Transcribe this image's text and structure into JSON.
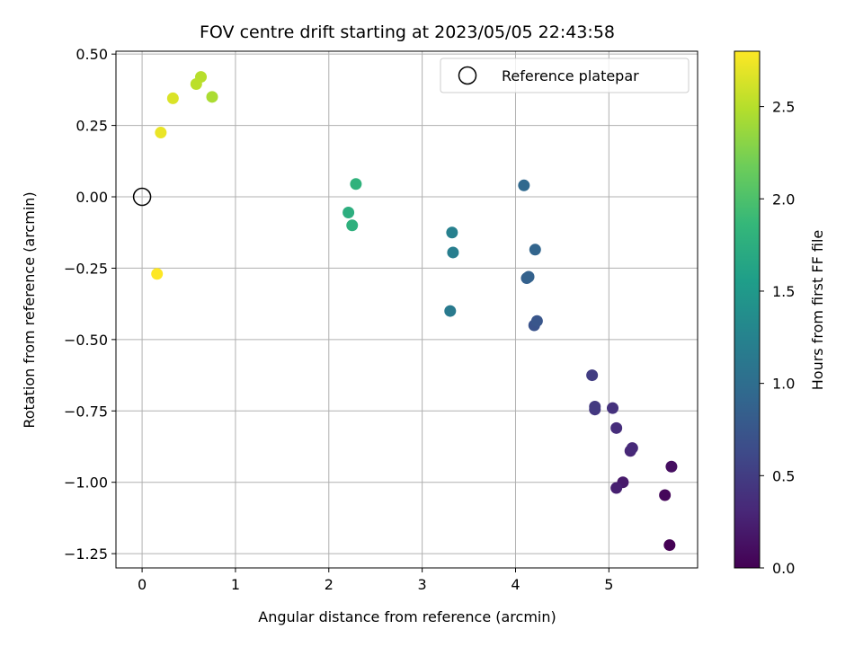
{
  "chart_data": {
    "type": "scatter",
    "title": "FOV centre drift starting at 2023/05/05 22:43:58",
    "xlabel": "Angular distance from reference (arcmin)",
    "ylabel": "Rotation from reference (arcmin)",
    "xlim": [
      -0.28,
      5.95
    ],
    "ylim": [
      -1.3,
      0.51
    ],
    "xticks": [
      0,
      1,
      2,
      3,
      4,
      5
    ],
    "xtick_labels": [
      "0",
      "1",
      "2",
      "3",
      "4",
      "5"
    ],
    "yticks": [
      0.5,
      0.25,
      0.0,
      -0.25,
      -0.5,
      -0.75,
      -1.0,
      -1.25
    ],
    "ytick_labels": [
      "0.50",
      "0.25",
      "0.00",
      "−0.25",
      "−0.50",
      "−0.75",
      "−1.00",
      "−1.25"
    ],
    "grid": true,
    "legend": {
      "position": "top-right",
      "entries": [
        "Reference platepar"
      ]
    },
    "reference_point": {
      "x": 0.0,
      "y": 0.0
    },
    "colorbar": {
      "label": "Hours from first FF file",
      "range": [
        0.0,
        2.8
      ],
      "ticks": [
        0.0,
        0.5,
        1.0,
        1.5,
        2.0,
        2.5
      ],
      "tick_labels": [
        "0.0",
        "0.5",
        "1.0",
        "1.5",
        "2.0",
        "2.5"
      ],
      "colormap": "viridis"
    },
    "points": [
      {
        "x": 5.65,
        "y": -1.22,
        "hours": 0.0
      },
      {
        "x": 5.6,
        "y": -1.045,
        "hours": 0.05
      },
      {
        "x": 5.67,
        "y": -0.945,
        "hours": 0.1
      },
      {
        "x": 5.15,
        "y": -1.0,
        "hours": 0.2
      },
      {
        "x": 5.08,
        "y": -1.02,
        "hours": 0.25
      },
      {
        "x": 5.23,
        "y": -0.89,
        "hours": 0.3
      },
      {
        "x": 5.25,
        "y": -0.88,
        "hours": 0.33
      },
      {
        "x": 5.08,
        "y": -0.81,
        "hours": 0.36
      },
      {
        "x": 5.04,
        "y": -0.74,
        "hours": 0.4
      },
      {
        "x": 4.85,
        "y": -0.745,
        "hours": 0.45
      },
      {
        "x": 4.85,
        "y": -0.735,
        "hours": 0.48
      },
      {
        "x": 4.82,
        "y": -0.625,
        "hours": 0.5
      },
      {
        "x": 4.2,
        "y": -0.45,
        "hours": 0.72
      },
      {
        "x": 4.23,
        "y": -0.435,
        "hours": 0.75
      },
      {
        "x": 4.12,
        "y": -0.285,
        "hours": 0.85
      },
      {
        "x": 4.14,
        "y": -0.28,
        "hours": 0.87
      },
      {
        "x": 4.21,
        "y": -0.185,
        "hours": 0.9
      },
      {
        "x": 4.09,
        "y": 0.04,
        "hours": 0.95
      },
      {
        "x": 3.3,
        "y": -0.4,
        "hours": 1.15
      },
      {
        "x": 3.33,
        "y": -0.195,
        "hours": 1.2
      },
      {
        "x": 3.32,
        "y": -0.125,
        "hours": 1.22
      },
      {
        "x": 2.21,
        "y": -0.055,
        "hours": 1.75
      },
      {
        "x": 2.25,
        "y": -0.1,
        "hours": 1.78
      },
      {
        "x": 2.29,
        "y": 0.045,
        "hours": 1.8
      },
      {
        "x": 0.75,
        "y": 0.35,
        "hours": 2.45
      },
      {
        "x": 0.63,
        "y": 0.42,
        "hours": 2.5
      },
      {
        "x": 0.58,
        "y": 0.395,
        "hours": 2.52
      },
      {
        "x": 0.33,
        "y": 0.345,
        "hours": 2.65
      },
      {
        "x": 0.2,
        "y": 0.225,
        "hours": 2.72
      },
      {
        "x": 0.16,
        "y": -0.27,
        "hours": 2.8
      }
    ]
  }
}
